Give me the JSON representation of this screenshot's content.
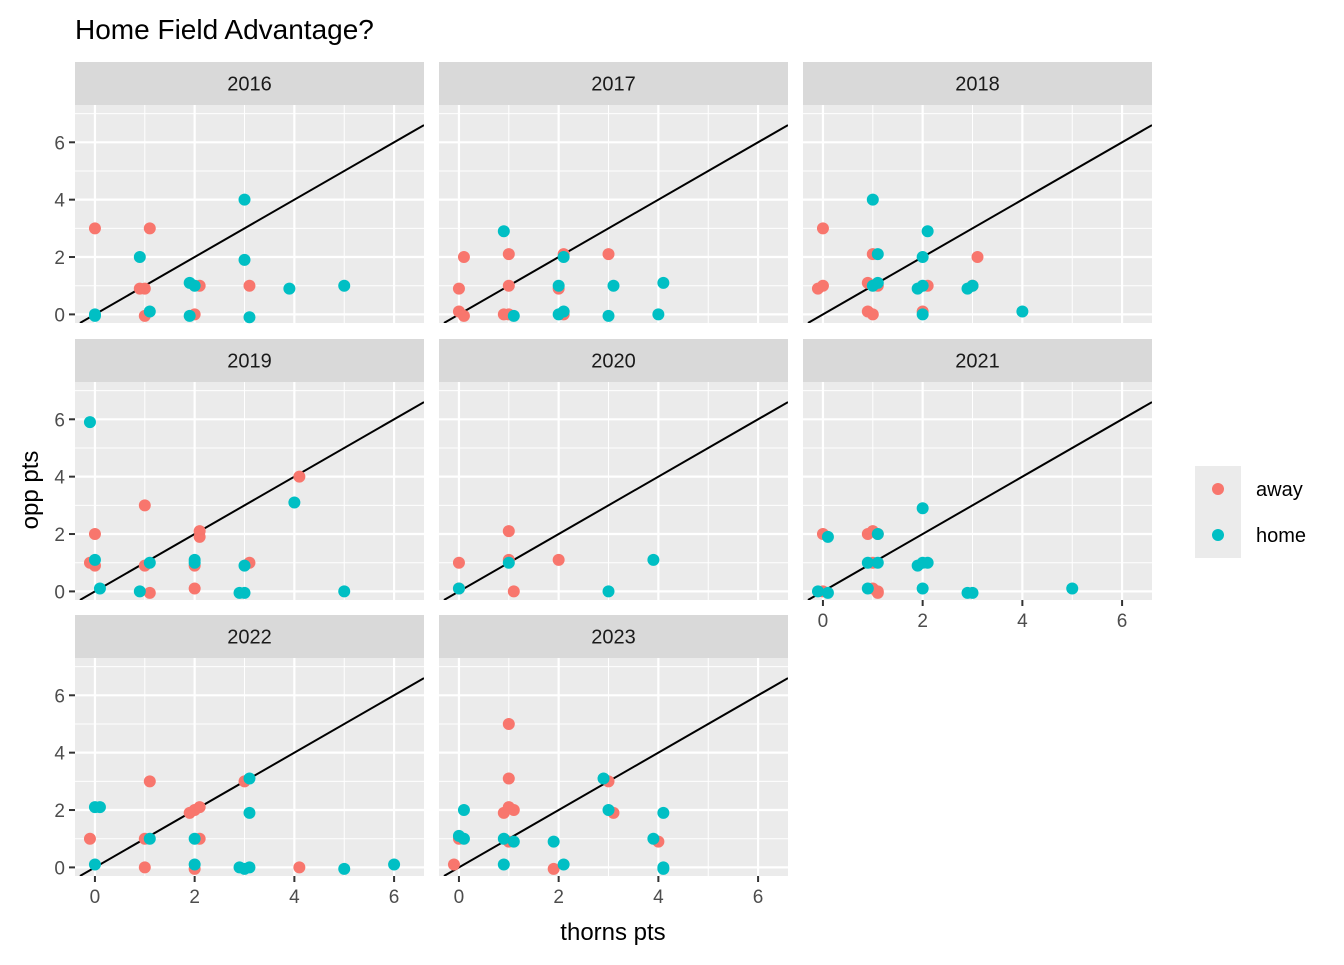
{
  "chart_data": {
    "type": "scatter",
    "title": "Home Field Advantage?",
    "xlabel": "thorns pts",
    "ylabel": "opp pts",
    "xlim": [
      -0.4,
      6.6
    ],
    "ylim": [
      -0.3,
      7.3
    ],
    "x_ticks": [
      0,
      2,
      4,
      6
    ],
    "y_ticks": [
      0,
      2,
      4,
      6
    ],
    "reference_line": "y = x",
    "grid": true,
    "legend": {
      "position": "right",
      "entries": [
        {
          "label": "away",
          "color": "#F8766D"
        },
        {
          "label": "home",
          "color": "#00BFC4"
        }
      ]
    },
    "colors": {
      "away": "#F8766D",
      "home": "#00BFC4",
      "panel_bg": "#EBEBEB",
      "strip_bg": "#D9D9D9"
    },
    "facets": [
      {
        "label": "2016",
        "away": [
          [
            0.0,
            3.0
          ],
          [
            1.1,
            3.0
          ],
          [
            0.9,
            0.9
          ],
          [
            1.0,
            0.9
          ],
          [
            1.0,
            -0.05
          ],
          [
            2.1,
            1.0
          ],
          [
            2.0,
            0.0
          ],
          [
            3.1,
            1.0
          ]
        ],
        "home": [
          [
            0.0,
            0.0
          ],
          [
            0.0,
            -0.05
          ],
          [
            0.9,
            2.0
          ],
          [
            1.1,
            0.1
          ],
          [
            1.9,
            1.1
          ],
          [
            2.0,
            1.0
          ],
          [
            1.9,
            -0.05
          ],
          [
            3.0,
            1.9
          ],
          [
            3.0,
            4.0
          ],
          [
            3.1,
            -0.1
          ],
          [
            3.9,
            0.9
          ],
          [
            5.0,
            1.0
          ]
        ]
      },
      {
        "label": "2017",
        "away": [
          [
            0.0,
            0.9
          ],
          [
            0.1,
            2.0
          ],
          [
            0.0,
            0.1
          ],
          [
            0.1,
            -0.05
          ],
          [
            1.0,
            2.1
          ],
          [
            1.0,
            1.0
          ],
          [
            0.9,
            0.0
          ],
          [
            1.0,
            0.0
          ],
          [
            2.0,
            0.9
          ],
          [
            2.1,
            2.1
          ],
          [
            2.1,
            0.0
          ],
          [
            3.0,
            2.1
          ]
        ],
        "home": [
          [
            0.9,
            2.9
          ],
          [
            1.1,
            -0.05
          ],
          [
            2.0,
            1.0
          ],
          [
            2.1,
            2.0
          ],
          [
            2.1,
            0.1
          ],
          [
            2.0,
            0.0
          ],
          [
            3.1,
            1.0
          ],
          [
            3.0,
            -0.05
          ],
          [
            4.0,
            0.0
          ],
          [
            4.1,
            1.1
          ]
        ]
      },
      {
        "label": "2018",
        "away": [
          [
            -0.1,
            0.9
          ],
          [
            0.0,
            1.0
          ],
          [
            0.0,
            3.0
          ],
          [
            1.0,
            2.1
          ],
          [
            0.9,
            1.1
          ],
          [
            1.1,
            1.0
          ],
          [
            0.9,
            0.1
          ],
          [
            1.0,
            0.0
          ],
          [
            2.1,
            1.0
          ],
          [
            2.0,
            0.1
          ],
          [
            3.0,
            1.0
          ],
          [
            3.1,
            2.0
          ]
        ],
        "home": [
          [
            1.0,
            1.0
          ],
          [
            1.1,
            1.1
          ],
          [
            1.0,
            4.0
          ],
          [
            1.1,
            2.1
          ],
          [
            2.1,
            2.9
          ],
          [
            2.0,
            2.0
          ],
          [
            1.9,
            0.9
          ],
          [
            2.0,
            1.0
          ],
          [
            2.0,
            0.0
          ],
          [
            2.9,
            0.9
          ],
          [
            3.0,
            1.0
          ],
          [
            4.0,
            0.1
          ]
        ]
      },
      {
        "label": "2019",
        "away": [
          [
            0.0,
            2.0
          ],
          [
            0.0,
            0.9
          ],
          [
            -0.1,
            1.0
          ],
          [
            1.0,
            3.0
          ],
          [
            1.0,
            0.9
          ],
          [
            1.1,
            -0.05
          ],
          [
            2.1,
            2.1
          ],
          [
            2.1,
            1.9
          ],
          [
            2.0,
            0.9
          ],
          [
            2.0,
            0.1
          ],
          [
            3.1,
            1.0
          ],
          [
            4.1,
            4.0
          ]
        ],
        "home": [
          [
            -0.1,
            5.9
          ],
          [
            0.0,
            1.1
          ],
          [
            0.1,
            0.1
          ],
          [
            1.1,
            1.0
          ],
          [
            0.9,
            0.0
          ],
          [
            2.0,
            1.0
          ],
          [
            2.0,
            1.1
          ],
          [
            3.0,
            0.9
          ],
          [
            2.9,
            -0.05
          ],
          [
            3.0,
            -0.05
          ],
          [
            4.0,
            3.1
          ],
          [
            5.0,
            0.0
          ]
        ]
      },
      {
        "label": "2020",
        "away": [
          [
            0.0,
            1.0
          ],
          [
            0.0,
            0.1
          ],
          [
            1.0,
            2.1
          ],
          [
            1.0,
            1.1
          ],
          [
            1.1,
            0.0
          ],
          [
            2.0,
            1.1
          ]
        ],
        "home": [
          [
            0.0,
            0.1
          ],
          [
            1.0,
            1.0
          ],
          [
            3.0,
            0.0
          ],
          [
            3.9,
            1.1
          ]
        ]
      },
      {
        "label": "2021",
        "away": [
          [
            0.0,
            2.0
          ],
          [
            0.0,
            0.0
          ],
          [
            1.0,
            2.1
          ],
          [
            0.9,
            2.0
          ],
          [
            1.1,
            2.0
          ],
          [
            1.0,
            1.0
          ],
          [
            1.0,
            0.1
          ],
          [
            1.1,
            -0.05
          ],
          [
            1.1,
            0.0
          ]
        ],
        "home": [
          [
            -0.1,
            0.0
          ],
          [
            0.1,
            1.9
          ],
          [
            0.1,
            -0.05
          ],
          [
            1.1,
            2.0
          ],
          [
            0.9,
            1.0
          ],
          [
            1.1,
            1.0
          ],
          [
            0.9,
            0.1
          ],
          [
            2.0,
            2.9
          ],
          [
            2.0,
            1.0
          ],
          [
            1.9,
            0.9
          ],
          [
            2.1,
            1.0
          ],
          [
            2.0,
            0.1
          ],
          [
            2.9,
            -0.05
          ],
          [
            3.0,
            -0.05
          ],
          [
            5.0,
            0.1
          ]
        ]
      },
      {
        "label": "2022",
        "away": [
          [
            -0.1,
            1.0
          ],
          [
            1.0,
            1.0
          ],
          [
            1.0,
            0.0
          ],
          [
            1.1,
            3.0
          ],
          [
            2.0,
            2.0
          ],
          [
            2.1,
            2.1
          ],
          [
            1.9,
            1.9
          ],
          [
            2.1,
            1.0
          ],
          [
            2.0,
            -0.05
          ],
          [
            3.0,
            3.0
          ],
          [
            4.1,
            0.0
          ]
        ],
        "home": [
          [
            0.0,
            2.1
          ],
          [
            0.1,
            2.1
          ],
          [
            0.0,
            0.1
          ],
          [
            1.1,
            1.0
          ],
          [
            2.0,
            1.0
          ],
          [
            2.0,
            0.1
          ],
          [
            3.1,
            3.1
          ],
          [
            3.1,
            1.9
          ],
          [
            3.0,
            -0.05
          ],
          [
            3.1,
            0.0
          ],
          [
            2.9,
            0.0
          ],
          [
            5.0,
            -0.05
          ],
          [
            6.0,
            0.1
          ]
        ]
      },
      {
        "label": "2023",
        "away": [
          [
            -0.1,
            0.1
          ],
          [
            0.0,
            1.0
          ],
          [
            1.0,
            5.0
          ],
          [
            1.0,
            3.1
          ],
          [
            0.9,
            1.9
          ],
          [
            1.0,
            2.1
          ],
          [
            1.1,
            2.0
          ],
          [
            1.0,
            0.9
          ],
          [
            1.9,
            -0.05
          ],
          [
            3.0,
            3.0
          ],
          [
            3.1,
            1.9
          ],
          [
            4.0,
            0.9
          ]
        ],
        "home": [
          [
            0.0,
            1.1
          ],
          [
            0.1,
            1.0
          ],
          [
            0.1,
            2.0
          ],
          [
            0.9,
            1.0
          ],
          [
            1.1,
            0.9
          ],
          [
            0.9,
            0.1
          ],
          [
            1.9,
            0.9
          ],
          [
            2.1,
            0.1
          ],
          [
            2.9,
            3.1
          ],
          [
            3.0,
            2.0
          ],
          [
            4.1,
            1.9
          ],
          [
            3.9,
            1.0
          ],
          [
            4.1,
            0.0
          ],
          [
            4.1,
            -0.05
          ]
        ]
      }
    ]
  }
}
